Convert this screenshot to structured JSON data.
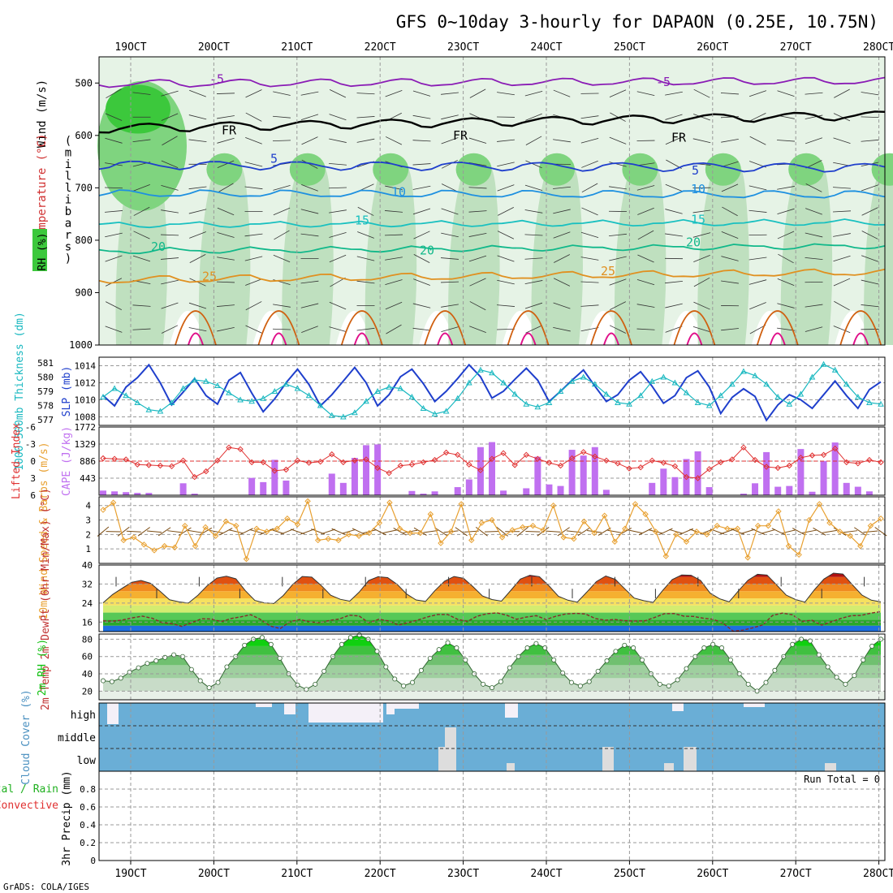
{
  "title": "GFS 0~10day 3-hourly for DAPAON (0.25E, 10.75N)",
  "footer": "GrADS: COLA/IGES",
  "colors": {
    "frame": "#000000",
    "grid": "#999999",
    "purple": "#8a1cb5",
    "blue_dark": "#1f3fcc",
    "blue": "#1e90e0",
    "cyan": "#19c0c0",
    "teal": "#11b88a",
    "orange": "#e09020",
    "orange_dark": "#d06010",
    "magenta": "#e0108a",
    "rh_light": "#e6f3e6",
    "rh_mid": "#bfe0bf",
    "rh_green": "#7fd47f",
    "rh_dark": "#3cc83c",
    "cloud": "#6aaed6",
    "cloud_clear": "#f4f0f8",
    "cloud_low": "#dddddd",
    "slp": "#1f3fcc",
    "thick": "#19b8c0",
    "lifted": "#e03030",
    "cape": "#c070f0",
    "wind": "#e8a030",
    "barb": "#7a4a10",
    "dewpt": "#8a2a2a",
    "rh2m": "#10c010"
  },
  "chart_data": [
    {
      "panel": "upper-air",
      "type": "heatmap",
      "x_labels": [
        "19OCT",
        "20OCT",
        "21OCT",
        "22OCT",
        "23OCT",
        "24OCT",
        "25OCT",
        "26OCT",
        "27OCT",
        "28OCT"
      ],
      "y_ticks": [
        500,
        600,
        700,
        800,
        900,
        1000
      ],
      "ylim": [
        450,
        1000
      ],
      "ylabel_chars": "(millibars)",
      "left_title": [
        "Wind (m/s)",
        "Temperature (°C)",
        "RH (%)"
      ],
      "isotherms": [
        {
          "label": "-5",
          "levels": [
            500,
            495
          ]
        },
        {
          "label": "FR",
          "levels": [
            585,
            560
          ]
        },
        {
          "label": "5",
          "levels": [
            655,
            660
          ]
        },
        {
          "label": "10",
          "levels": [
            710,
            712
          ]
        },
        {
          "label": "15",
          "levels": [
            770,
            765
          ]
        },
        {
          "label": "20",
          "levels": [
            820,
            810
          ]
        },
        {
          "label": "25",
          "levels": [
            875,
            860
          ]
        }
      ],
      "contour_labels": [
        "-5",
        "-5",
        "FR",
        "FR",
        "FR",
        "5",
        "5",
        "10",
        "10",
        "15",
        "15",
        "20",
        "20",
        "20",
        "25",
        "25"
      ]
    },
    {
      "panel": "slp-thickness",
      "type": "line",
      "ylabel_left": "1000-500mb Thickness (dm)",
      "ylabel_right": "SLP (mb)",
      "thickness_ticks": [
        577,
        578,
        579,
        580,
        581
      ],
      "slp_ticks": [
        1008,
        1010,
        1012,
        1014
      ],
      "slp_range": [
        1007,
        1015
      ],
      "thickness_range": [
        576.6,
        581.4
      ],
      "series": [
        {
          "name": "SLP",
          "values": [
            1010.5,
            1009.3,
            1011.5,
            1012.6,
            1014.1,
            1012,
            1009.4,
            1010.9,
            1012.5,
            1010.5,
            1009.5,
            1012.3,
            1013.2,
            1010.8,
            1008.6,
            1010.1,
            1012,
            1013.6,
            1011.8,
            1009.3,
            1010.6,
            1012.2,
            1013.8,
            1012,
            1009.3,
            1010.6,
            1012.7,
            1013.6,
            1011.9,
            1009.8,
            1011,
            1012.5,
            1014.1,
            1012.7,
            1010.2,
            1011,
            1012.4,
            1013.7,
            1012.3,
            1009.8,
            1011,
            1012.3,
            1013.5,
            1011.6,
            1009.8,
            1010.6,
            1012.3,
            1013.3,
            1011.6,
            1009.6,
            1010.5,
            1012.6,
            1013.4,
            1011.5,
            1008.4,
            1010.3,
            1011.3,
            1010.4,
            1007.6,
            1009.4,
            1010.6,
            1010,
            1009,
            1010.6,
            1012.2,
            1010.5,
            1009,
            1011.2,
            1012.1
          ]
        },
        {
          "name": "Thickness",
          "values": [
            578.6,
            579.2,
            578.7,
            578.2,
            577.7,
            577.6,
            578.2,
            579.2,
            579.8,
            579.7,
            579.4,
            578.9,
            578.4,
            578.3,
            578.5,
            579,
            579.5,
            579.2,
            578.7,
            578,
            577.3,
            577.2,
            577.5,
            578.3,
            579,
            579.3,
            579.2,
            578.6,
            577.8,
            577.4,
            577.6,
            578.5,
            579.6,
            580.5,
            580.3,
            579.6,
            578.8,
            578.1,
            577.9,
            578.2,
            579,
            579.7,
            580,
            579.5,
            578.8,
            578.2,
            578.1,
            578.7,
            579.7,
            580,
            579.6,
            578.9,
            578.2,
            578,
            578.7,
            579.5,
            580.4,
            580.1,
            579.5,
            578.6,
            578.1,
            578.8,
            580,
            580.9,
            580.5,
            579.5,
            578.6,
            578.2,
            578.1
          ]
        }
      ]
    },
    {
      "panel": "lifted-cape",
      "type": "bar",
      "ylabel_left": "Lifted Index",
      "ylabel_right": "CAPE (J/kg)",
      "li_ticks": [
        -6,
        -3,
        0,
        3,
        6
      ],
      "cape_ticks": [
        443,
        886,
        1329,
        1772
      ],
      "cape_range": [
        0,
        1772
      ],
      "li_range": [
        -6,
        6
      ],
      "series": [
        {
          "name": "CAPE",
          "values": [
            120,
            100,
            80,
            60,
            60,
            10,
            0,
            310,
            40,
            0,
            10,
            0,
            0,
            450,
            340,
            920,
            380,
            10,
            0,
            10,
            560,
            320,
            970,
            1300,
            1320,
            10,
            0,
            110,
            40,
            100,
            10,
            210,
            410,
            1250,
            1380,
            120,
            10,
            180,
            1000,
            280,
            240,
            1180,
            1030,
            1250,
            140,
            0,
            0,
            10,
            320,
            690,
            470,
            940,
            1140,
            210,
            10,
            0,
            40,
            310,
            1120,
            220,
            240,
            1200,
            90,
            890,
            1370,
            320,
            220,
            100,
            0
          ]
        },
        {
          "name": "Lifted Index",
          "values": [
            -0.5,
            -0.4,
            -0.3,
            0.6,
            0.7,
            0.8,
            0.9,
            -0.1,
            2.8,
            1.8,
            -0.1,
            -2.4,
            -2.1,
            0.2,
            0.2,
            1.7,
            1.5,
            -0.1,
            0.3,
            0.1,
            -1.2,
            0.2,
            -0.1,
            -0.3,
            1.2,
            2.1,
            0.8,
            0.6,
            0.2,
            -0.2,
            -1.5,
            -1.1,
            0.6,
            1.6,
            -0.4,
            -1.4,
            0.7,
            -1.1,
            -0.4,
            0.3,
            0.8,
            -0.5,
            -1.6,
            -0.8,
            -0.1,
            0.4,
            1.3,
            1.1,
            -0.1,
            0.3,
            0.9,
            2.8,
            3.0,
            1.4,
            0.2,
            -0.3,
            -2.4,
            -0.2,
            1.0,
            1.2,
            0.8,
            -0.6,
            -1.0,
            -1.1,
            -2.2,
            0.2,
            0.4,
            -0.2,
            0.2
          ]
        }
      ]
    },
    {
      "panel": "wind10m",
      "type": "line",
      "ylabel": "10m Wind Speed & Barbs (m/s)",
      "y_ticks": [
        1,
        2,
        3,
        4
      ],
      "ylim": [
        0,
        4.6
      ],
      "series": [
        {
          "name": "Speed",
          "values": [
            3.7,
            4.2,
            1.6,
            1.8,
            1.3,
            0.9,
            1.2,
            1.1,
            2.6,
            1.2,
            2.5,
            1.9,
            2.9,
            2.6,
            0.3,
            2.4,
            2.2,
            2.4,
            3.1,
            2.7,
            4.3,
            1.6,
            1.7,
            1.6,
            2.0,
            1.9,
            2.1,
            2.8,
            4.2,
            2.4,
            2.1,
            2.1,
            3.4,
            1.4,
            2.2,
            4.1,
            1.6,
            2.8,
            3.0,
            1.8,
            2.3,
            2.5,
            2.6,
            2.3,
            4.0,
            1.8,
            1.7,
            2.9,
            2.1,
            3.3,
            1.5,
            2.4,
            4.1,
            3.4,
            2.2,
            0.5,
            2.0,
            1.5,
            2.2,
            2.0,
            2.6,
            2.4,
            2.4,
            0.4,
            2.6,
            2.6,
            3.6,
            1.2,
            0.6,
            3.0,
            4.1,
            2.8,
            2.2,
            1.9,
            1.2,
            2.6,
            3.1
          ]
        }
      ]
    },
    {
      "panel": "temp2m",
      "type": "area",
      "ylabel": "2m Temp 2m DewPt (6hr Min/Max) (°C)",
      "y_ticks": [
        16,
        24,
        32,
        40
      ],
      "ylim": [
        12,
        40
      ],
      "series": [
        {
          "name": "Temp",
          "values": [
            24.1,
            27.6,
            30.2,
            32.7,
            33.5,
            32.3,
            29,
            25.4,
            24.5,
            24,
            27.3,
            31.4,
            34.5,
            35.3,
            34.2,
            29.2,
            25.1,
            24.1,
            23.8,
            27.2,
            31.9,
            35.2,
            34.9,
            31.4,
            27.3,
            25.6,
            24.8,
            28.6,
            33.5,
            35.1,
            34.7,
            31.9,
            27.8,
            25.3,
            24.7,
            29.3,
            33.2,
            35.2,
            34.4,
            30.9,
            27,
            25.5,
            24.8,
            29.4,
            34.1,
            35.7,
            35.1,
            31.3,
            26.9,
            25.2,
            24.4,
            28.6,
            33,
            35.4,
            34,
            30,
            26.1,
            25,
            24.3,
            29.3,
            33.9,
            35.8,
            35.7,
            33.5,
            28.2,
            25.8,
            24.5,
            29.2,
            33.6,
            36.1,
            35.8,
            31.7,
            27.4,
            25.5,
            24.4,
            29.6,
            34.1,
            36.6,
            36.2,
            31.7,
            27.4,
            25.2,
            24.5
          ]
        },
        {
          "name": "DewPt",
          "values": [
            16.5,
            16.4,
            16.9,
            17.8,
            18.5,
            17.6,
            15.8,
            15.3,
            14.2,
            15.8,
            17.4,
            17.3,
            16.2,
            17.5,
            18.2,
            19.1,
            17.1,
            14.3,
            13.3,
            16.2,
            17.1,
            16.1,
            15.7,
            16.7,
            17.3,
            18.9,
            18.6,
            15.7,
            17.2,
            16.5,
            14.7,
            15.8,
            16.9,
            18.2,
            19.2,
            19.2,
            17.2,
            16.3,
            18.5,
            19.5,
            19.9,
            18.9,
            17.2,
            18.1,
            18.7,
            17.1,
            18.5,
            19.4,
            19.7,
            19.4,
            17.5,
            16.8,
            17.1,
            16.6,
            16.4,
            16.5,
            17.9,
            19.5,
            19.6,
            18.5,
            18.4,
            17.6,
            17.2,
            15.4,
            12.2,
            12.6,
            13.6,
            14.8,
            18.8,
            19.8,
            19.1,
            16.3,
            16.8,
            14.7,
            16.2,
            17.6,
            18.7,
            18.8,
            19.8,
            20.4
          ]
        }
      ]
    },
    {
      "panel": "rh2m",
      "type": "area",
      "ylabel": "2m RH (%)",
      "y_ticks": [
        20,
        40,
        60,
        80
      ],
      "ylim": [
        10,
        86
      ],
      "series": [
        {
          "name": "RH",
          "values": [
            32,
            31,
            35,
            42,
            47,
            52,
            55,
            59,
            62,
            60,
            45,
            32,
            24,
            30,
            48,
            60,
            73,
            80,
            82,
            74,
            58,
            40,
            27,
            22,
            28,
            43,
            60,
            74,
            82,
            85,
            80,
            66,
            48,
            34,
            26,
            30,
            44,
            58,
            68,
            76,
            70,
            56,
            40,
            28,
            24,
            31,
            47,
            60,
            70,
            75,
            70,
            56,
            41,
            30,
            26,
            31,
            43,
            55,
            66,
            73,
            70,
            56,
            40,
            28,
            26,
            33,
            46,
            60,
            70,
            74,
            70,
            56,
            40,
            28,
            20,
            30,
            44,
            60,
            74,
            80,
            78,
            62,
            48,
            36,
            28,
            38,
            56,
            72,
            80
          ]
        }
      ]
    },
    {
      "panel": "cloud",
      "type": "bar",
      "ylabel": "Cloud Cover (%)",
      "levels": [
        "high",
        "middle",
        "low"
      ]
    },
    {
      "panel": "precip",
      "type": "bar",
      "ylabel": "3hr Precip (mm)",
      "left_labels": [
        "Total / Rain",
        "Convective"
      ],
      "y_ticks": [
        0,
        0.2,
        0.4,
        0.6,
        0.8
      ],
      "ylim": [
        0,
        1
      ],
      "run_total": "Run Total = 0"
    }
  ]
}
